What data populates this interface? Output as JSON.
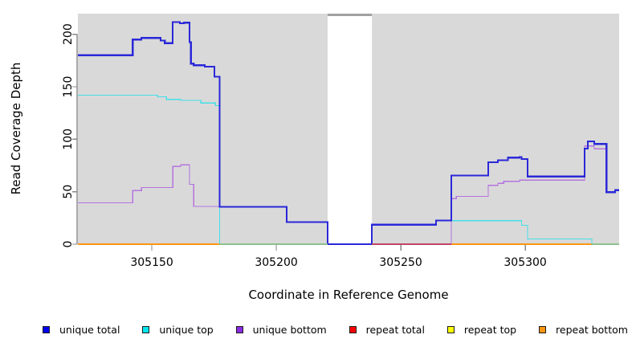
{
  "chart_data": {
    "type": "line",
    "subtype": "step",
    "title": "",
    "xlabel": "Coordinate in Reference Genome",
    "ylabel": "Read Coverage Depth",
    "xlim": [
      305120.3,
      305337.7
    ],
    "ylim": [
      0,
      219.6
    ],
    "xticks": [
      305150,
      305200,
      305250,
      305300
    ],
    "yticks": [
      0,
      50,
      100,
      150,
      200
    ],
    "plot_bg": "#d9d9d9",
    "axis_color": "#555555",
    "tick_color": "#888888",
    "text_color": "#000000",
    "gap_region": {
      "x1": 305220.6,
      "x2": 305238.4,
      "fill": "#ffffff",
      "top_bar_color": "#a0a0a0"
    },
    "series": [
      {
        "name": "repeat total",
        "color": "#ee0000",
        "width": 1.4,
        "points": [
          [
            305120.3,
            0
          ]
        ]
      },
      {
        "name": "repeat top",
        "color": "#ffff00",
        "width": 1.4,
        "points": [
          [
            305120.3,
            0
          ]
        ]
      },
      {
        "name": "repeat bottom",
        "color": "#ff9612",
        "width": 2,
        "points": [
          [
            305120.3,
            0
          ]
        ]
      },
      {
        "name": "unique top",
        "color": "#45dfe6",
        "width": 1.3,
        "points": [
          [
            305120.3,
            142
          ],
          [
            305152.3,
            140.5
          ],
          [
            305155.8,
            138
          ],
          [
            305161.6,
            137
          ],
          [
            305169.7,
            134.5
          ],
          [
            305175.5,
            132
          ],
          [
            305177.2,
            0
          ],
          [
            305238.4,
            18.5
          ],
          [
            305264.2,
            22.5
          ],
          [
            305298.5,
            18
          ],
          [
            305300.9,
            5
          ],
          [
            305326.7,
            0
          ]
        ]
      },
      {
        "name": "unique bottom",
        "color": "#b573e0",
        "width": 1.3,
        "points": [
          [
            305120.3,
            39.5
          ],
          [
            305142.3,
            51
          ],
          [
            305145.8,
            54
          ],
          [
            305158.4,
            74
          ],
          [
            305161.6,
            75.5
          ],
          [
            305165.1,
            57
          ],
          [
            305166.8,
            36
          ],
          [
            305177.2,
            35.5
          ],
          [
            305204.2,
            21
          ],
          [
            305220.6,
            0
          ],
          [
            305270.3,
            43.5
          ],
          [
            305272.3,
            45.5
          ],
          [
            305285.1,
            56
          ],
          [
            305289,
            58
          ],
          [
            305291.3,
            60
          ],
          [
            305297.7,
            61
          ],
          [
            305323.8,
            93.5
          ],
          [
            305327.7,
            91
          ],
          [
            305332.6,
            49
          ],
          [
            305336.1,
            51
          ]
        ]
      },
      {
        "name": "unique total",
        "color": "#2a28d8",
        "width": 2.2,
        "points": [
          [
            305120.3,
            180
          ],
          [
            305142.3,
            195
          ],
          [
            305145.8,
            196.5
          ],
          [
            305153.5,
            194
          ],
          [
            305155.2,
            191.5
          ],
          [
            305158.4,
            211.5
          ],
          [
            305161.3,
            210.5
          ],
          [
            305162.9,
            211
          ],
          [
            305165.1,
            192.5
          ],
          [
            305165.7,
            172
          ],
          [
            305166.8,
            170.5
          ],
          [
            305171.3,
            169
          ],
          [
            305175.1,
            159.5
          ],
          [
            305177.2,
            35.5
          ],
          [
            305204.2,
            21
          ],
          [
            305220.6,
            0
          ],
          [
            305238.4,
            18.5
          ],
          [
            305264.2,
            22.5
          ],
          [
            305270.3,
            65.5
          ],
          [
            305285.1,
            78
          ],
          [
            305289,
            80
          ],
          [
            305293,
            82.5
          ],
          [
            305297.7,
            83
          ],
          [
            305298.5,
            81
          ],
          [
            305300.9,
            64.5
          ],
          [
            305323.8,
            91
          ],
          [
            305325.1,
            98
          ],
          [
            305327.7,
            95.5
          ],
          [
            305332.6,
            49.5
          ],
          [
            305336.1,
            51.5
          ]
        ]
      }
    ],
    "zero_overlap_segments": [
      {
        "x1": 305177.2,
        "x2": 305220.6,
        "color": "#8fbf8f"
      },
      {
        "x1": 305238.4,
        "x2": 305270.3,
        "color": "#c04468"
      },
      {
        "x1": 305326.7,
        "x2": 305337.7,
        "color": "#8fbf8f"
      }
    ]
  },
  "legend": {
    "items": [
      {
        "label": "unique total",
        "color": "#0000ee"
      },
      {
        "label": "unique top",
        "color": "#00e5ee"
      },
      {
        "label": "unique bottom",
        "color": "#8a2be2"
      },
      {
        "label": "repeat total",
        "color": "#ff0000"
      },
      {
        "label": "repeat top",
        "color": "#ffff00"
      },
      {
        "label": "repeat bottom",
        "color": "#ff9612"
      }
    ]
  }
}
